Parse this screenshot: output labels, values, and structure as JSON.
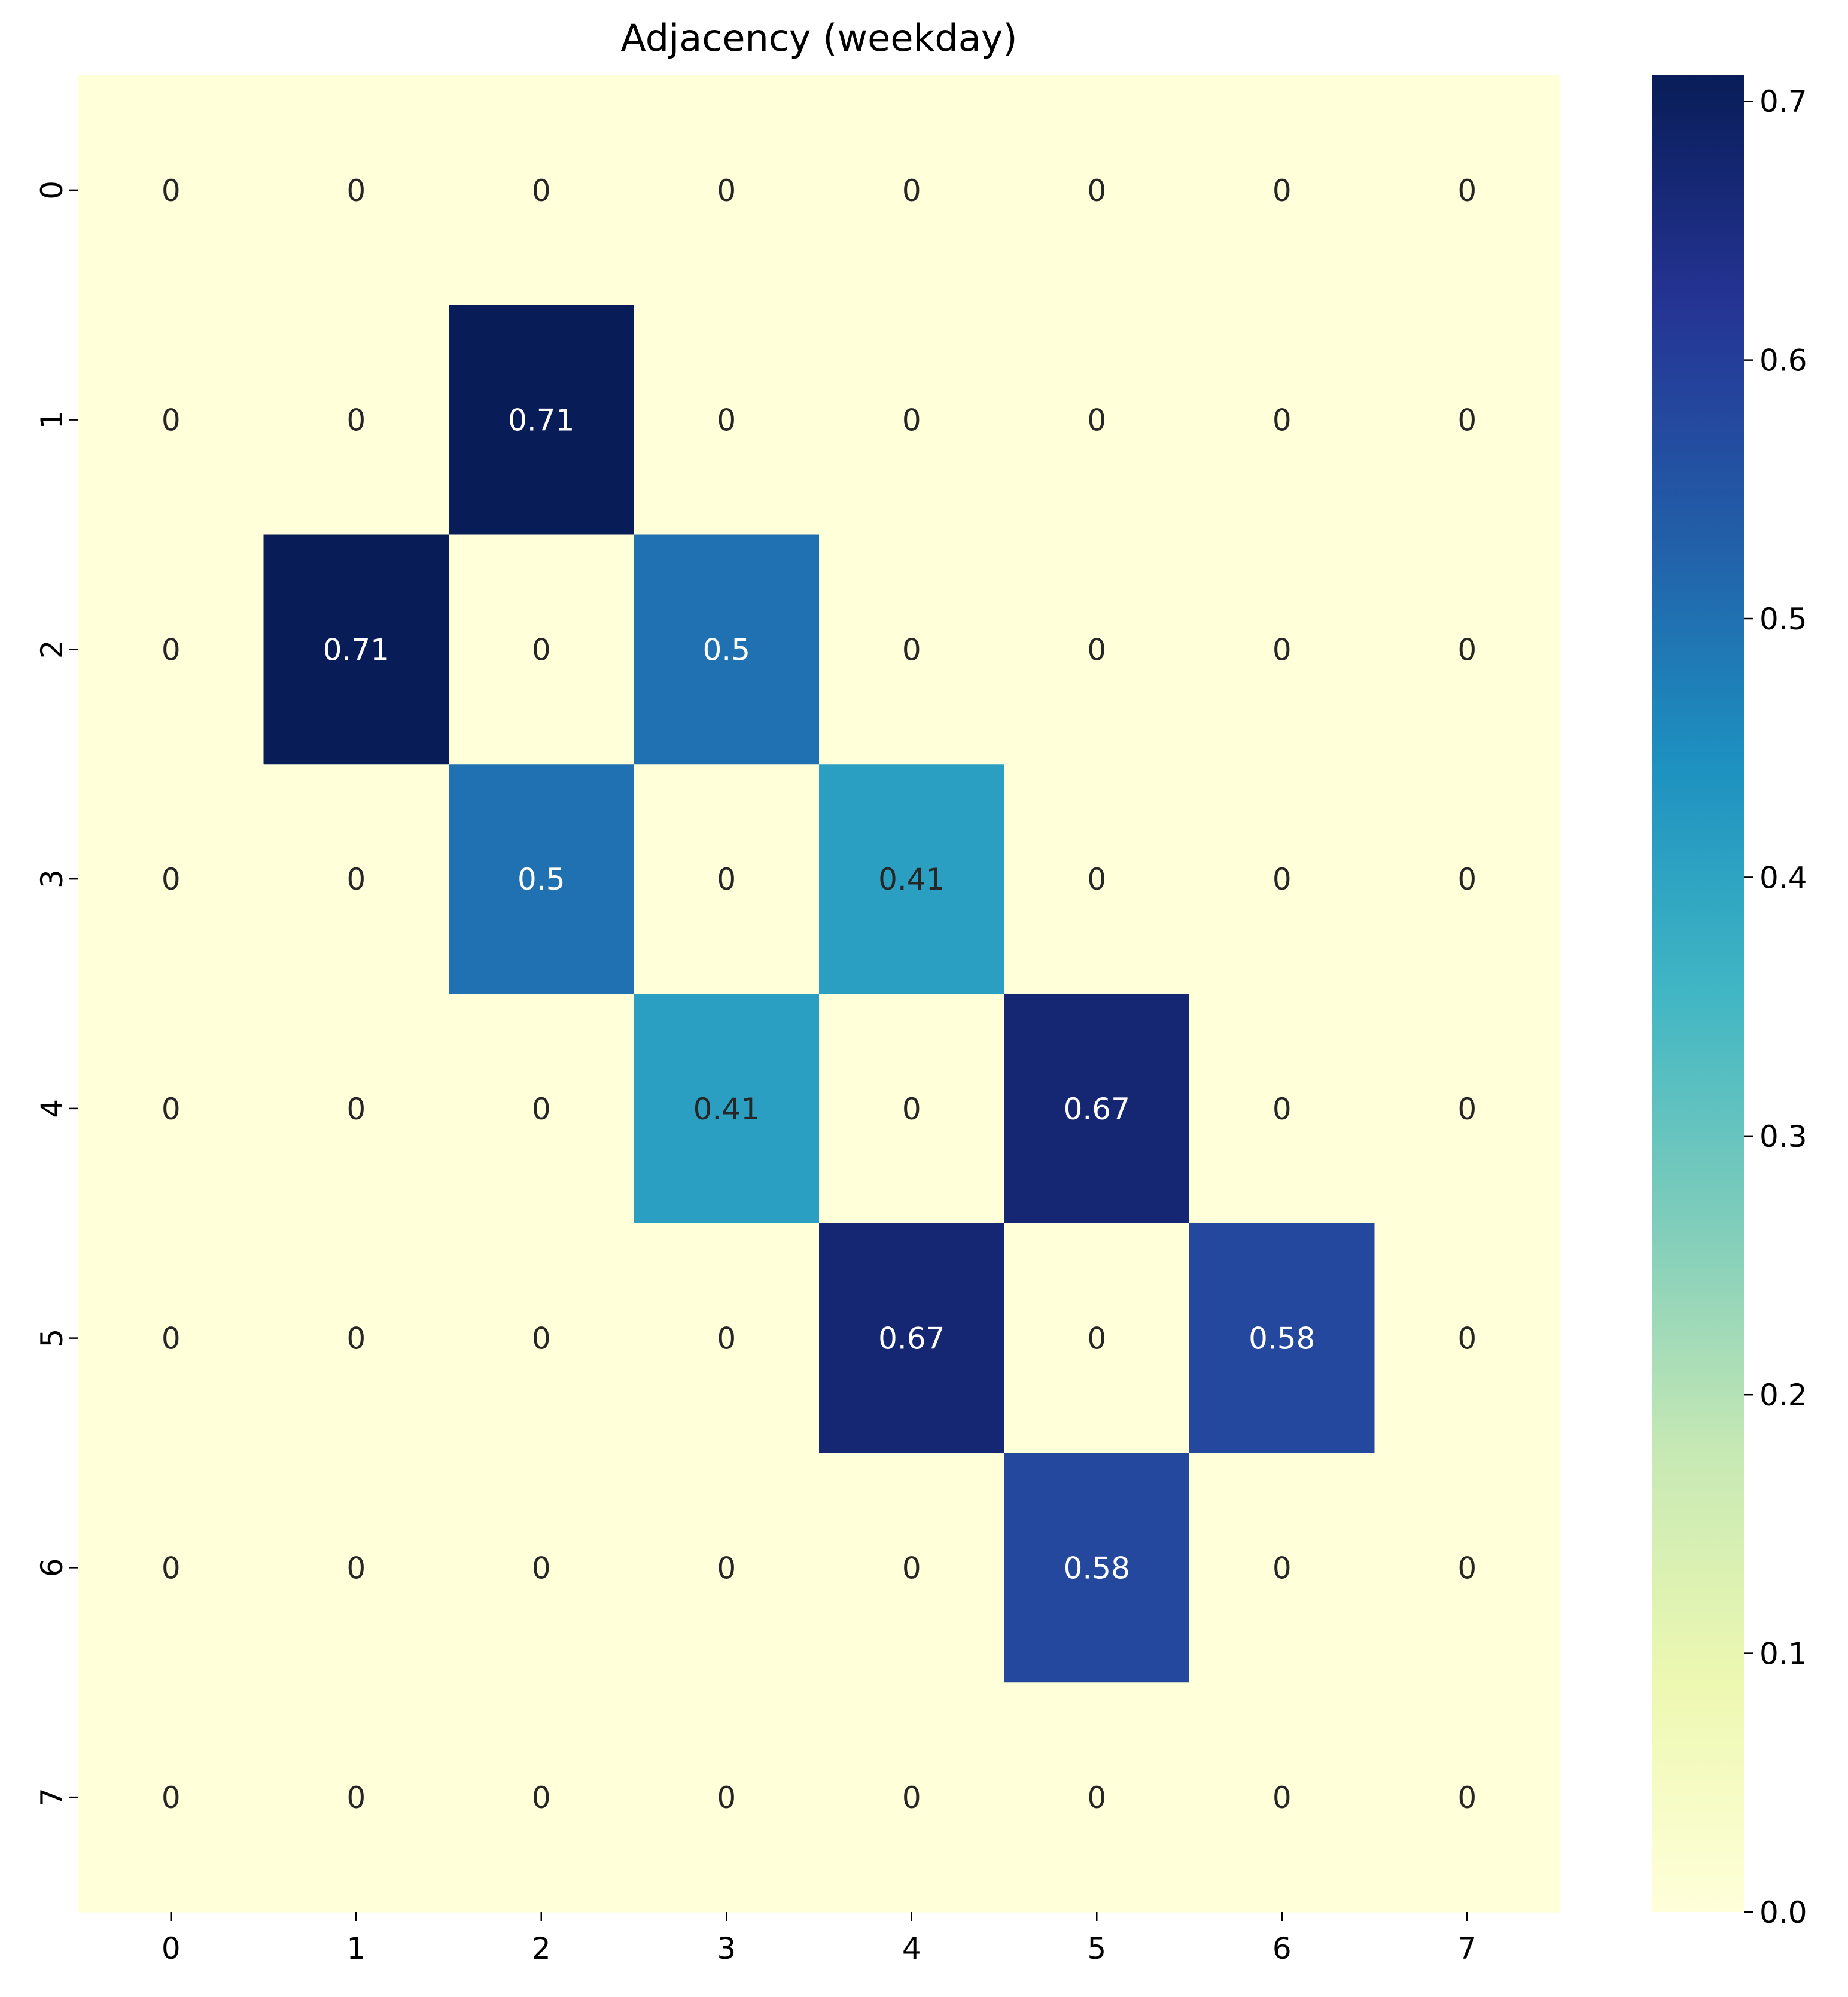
{
  "chart_data": {
    "type": "heatmap",
    "title": "Adjacency (weekday)",
    "xlabel": "",
    "ylabel": "",
    "x_categories": [
      "0",
      "1",
      "2",
      "3",
      "4",
      "5",
      "6",
      "7"
    ],
    "y_categories": [
      "0",
      "1",
      "2",
      "3",
      "4",
      "5",
      "6",
      "7"
    ],
    "values": [
      [
        0,
        0,
        0,
        0,
        0,
        0,
        0,
        0
      ],
      [
        0,
        0,
        0.71,
        0,
        0,
        0,
        0,
        0
      ],
      [
        0,
        0.71,
        0,
        0.5,
        0,
        0,
        0,
        0
      ],
      [
        0,
        0,
        0.5,
        0,
        0.41,
        0,
        0,
        0
      ],
      [
        0,
        0,
        0,
        0.41,
        0,
        0.67,
        0,
        0
      ],
      [
        0,
        0,
        0,
        0,
        0.67,
        0,
        0.58,
        0
      ],
      [
        0,
        0,
        0,
        0,
        0,
        0.58,
        0,
        0
      ],
      [
        0,
        0,
        0,
        0,
        0,
        0,
        0,
        0
      ]
    ],
    "labels": [
      [
        "0",
        "0",
        "0",
        "0",
        "0",
        "0",
        "0",
        "0"
      ],
      [
        "0",
        "0",
        "0.71",
        "0",
        "0",
        "0",
        "0",
        "0"
      ],
      [
        "0",
        "0.71",
        "0",
        "0.5",
        "0",
        "0",
        "0",
        "0"
      ],
      [
        "0",
        "0",
        "0.5",
        "0",
        "0.41",
        "0",
        "0",
        "0"
      ],
      [
        "0",
        "0",
        "0",
        "0.41",
        "0",
        "0.67",
        "0",
        "0"
      ],
      [
        "0",
        "0",
        "0",
        "0",
        "0.67",
        "0",
        "0.58",
        "0"
      ],
      [
        "0",
        "0",
        "0",
        "0",
        "0",
        "0.58",
        "0",
        "0"
      ],
      [
        "0",
        "0",
        "0",
        "0",
        "0",
        "0",
        "0",
        "0"
      ]
    ],
    "colormap": "YlGnBu",
    "vmin": 0,
    "vmax": 0.71,
    "colorbar": {
      "ticks": [
        0.0,
        0.1,
        0.2,
        0.3,
        0.4,
        0.5,
        0.6,
        0.7
      ],
      "tick_labels": [
        "0.0",
        "0.1",
        "0.2",
        "0.3",
        "0.4",
        "0.5",
        "0.6",
        "0.7"
      ],
      "placement": "right"
    }
  }
}
